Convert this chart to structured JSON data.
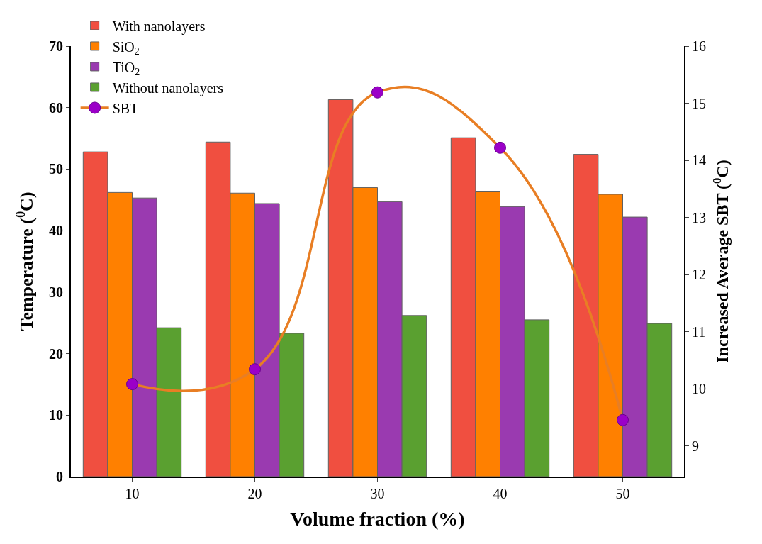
{
  "chart_data": {
    "type": "bar",
    "xlabel": "Volume fraction (%)",
    "ylabel": "Temperature ($^{0}$C)",
    "y2label": "Increased Average SBT ($^{0}$C)",
    "categories": [
      "10",
      "20",
      "30",
      "40",
      "50"
    ],
    "series": [
      {
        "name": "With nanolayers",
        "color": "#f04f40",
        "values": [
          52.8,
          54.4,
          61.3,
          55.1,
          52.4
        ]
      },
      {
        "name": "SiO$_{2}$",
        "color": "#ff8000",
        "values": [
          46.2,
          46.1,
          47.0,
          46.3,
          45.9
        ]
      },
      {
        "name": "TiO$_{2}$",
        "color": "#9a3ab0",
        "values": [
          45.3,
          44.4,
          44.7,
          43.9,
          42.2
        ]
      },
      {
        "name": "Without nanolayers",
        "color": "#5aa030",
        "values": [
          24.2,
          23.3,
          26.2,
          25.5,
          24.9
        ]
      },
      {
        "name": "SBT",
        "type": "line",
        "axis": "y2",
        "color": "#e87e24",
        "marker": "circle",
        "values": [
          10.08,
          10.34,
          15.19,
          14.22,
          9.45
        ]
      }
    ],
    "ylim": [
      0,
      70
    ],
    "yticks": [
      0,
      10,
      20,
      30,
      40,
      50,
      60,
      70
    ],
    "y2lim": [
      8.46,
      16
    ],
    "y2ticks": [
      9,
      10,
      11,
      12,
      13,
      14,
      15,
      16
    ],
    "legend": "top left"
  }
}
